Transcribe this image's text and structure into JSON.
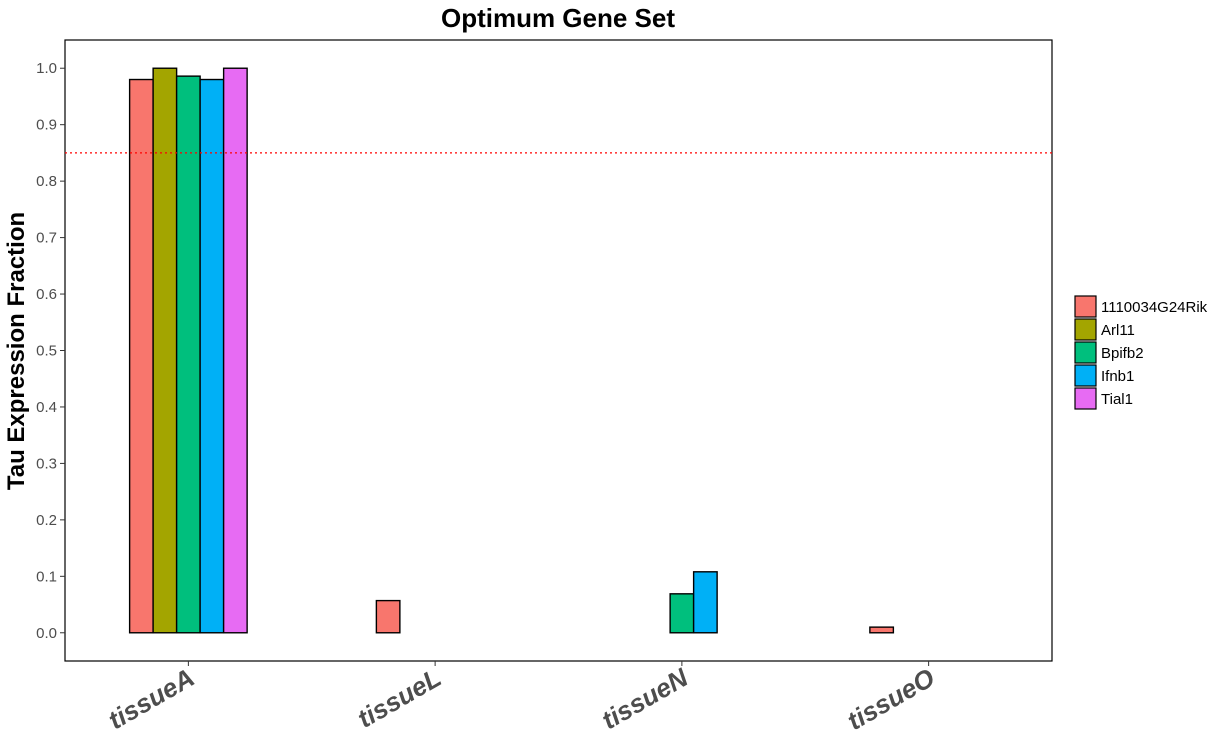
{
  "chart_data": {
    "type": "bar",
    "title": "Optimum Gene Set",
    "ylabel": "Tau Expression Fraction",
    "xlabel": "",
    "ylim": [
      -0.05,
      1.05
    ],
    "yticks": [
      "0.0",
      "0.1",
      "0.2",
      "0.3",
      "0.4",
      "0.5",
      "0.6",
      "0.7",
      "0.8",
      "0.9",
      "1.0"
    ],
    "categories": [
      "tissueA",
      "tissueL",
      "tissueN",
      "tissueO"
    ],
    "series": [
      {
        "name": "1110034G24Rik",
        "color": "#F8766D",
        "values": [
          0.98,
          0.057,
          0.0,
          0.01
        ]
      },
      {
        "name": "Arl11",
        "color": "#A3A500",
        "values": [
          1.0,
          0.0,
          0.0,
          0.0
        ]
      },
      {
        "name": "Bpifb2",
        "color": "#00BF7D",
        "values": [
          0.986,
          0.0,
          0.069,
          0.0
        ]
      },
      {
        "name": "Ifnb1",
        "color": "#00B0F6",
        "values": [
          0.98,
          0.0,
          0.108,
          0.0
        ]
      },
      {
        "name": "Tial1",
        "color": "#E76BF3",
        "values": [
          1.0,
          0.0,
          0.0,
          0.0
        ]
      }
    ],
    "threshold": {
      "value": 0.85,
      "color": "#FF0000",
      "style": "dotted"
    },
    "grid": false,
    "legend_position": "right"
  }
}
